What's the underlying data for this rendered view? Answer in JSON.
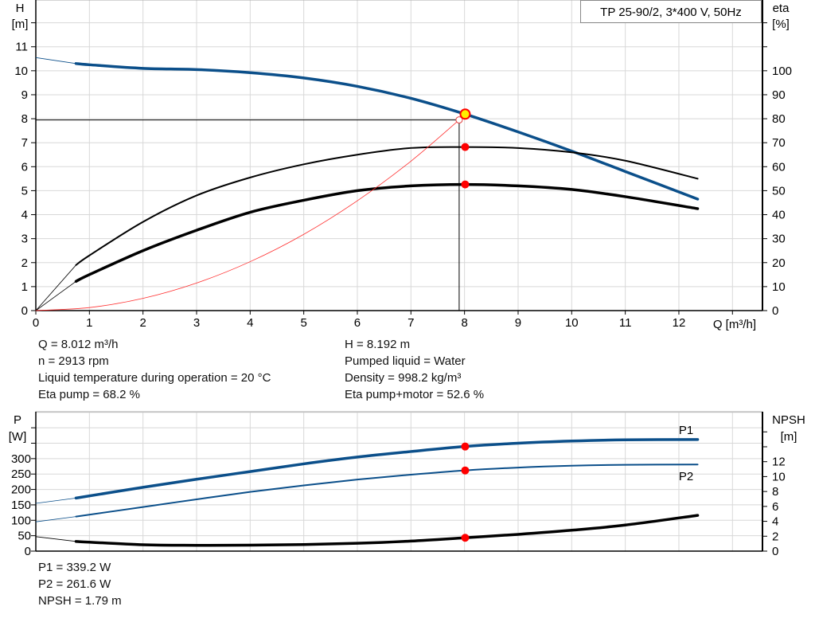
{
  "chart_data": [
    {
      "type": "line",
      "title": "",
      "xlabel": "Q [m³/h]",
      "ylabel": "H\n[m]",
      "y2label": "eta\n[%]",
      "xlim": [
        0,
        13.56
      ],
      "ylim": [
        0,
        12.95
      ],
      "y2lim": [
        0,
        129.5
      ],
      "xticks": [
        0,
        1,
        2,
        3,
        4,
        5,
        6,
        7,
        8,
        9,
        10,
        11,
        12
      ],
      "yticks": [
        0,
        1,
        2,
        3,
        4,
        5,
        6,
        7,
        8,
        9,
        10,
        11
      ],
      "y2ticks": [
        0,
        10,
        20,
        30,
        40,
        50,
        60,
        70,
        80,
        90,
        100
      ],
      "grid": true,
      "series": [
        {
          "key": "H",
          "axis": "left",
          "color": "#0b4f8a",
          "extrapolated": [
            [
              0,
              10.55
            ],
            [
              0.75,
              10.3
            ]
          ],
          "points": [
            [
              0.75,
              10.3
            ],
            [
              1,
              10.25
            ],
            [
              2,
              10.1
            ],
            [
              3,
              10.05
            ],
            [
              4,
              9.92
            ],
            [
              5,
              9.7
            ],
            [
              6,
              9.35
            ],
            [
              7,
              8.85
            ],
            [
              8,
              8.2
            ],
            [
              9,
              7.45
            ],
            [
              10,
              6.65
            ],
            [
              11,
              5.8
            ],
            [
              12.35,
              4.65
            ]
          ]
        },
        {
          "key": "eta_pump",
          "axis": "right",
          "color": "#000000",
          "extrapolated": [
            [
              0,
              0
            ],
            [
              0.75,
              19
            ]
          ],
          "points": [
            [
              0.75,
              19
            ],
            [
              1,
              23
            ],
            [
              2,
              37
            ],
            [
              3,
              48
            ],
            [
              4,
              55.5
            ],
            [
              5,
              61
            ],
            [
              6,
              65
            ],
            [
              7,
              67.8
            ],
            [
              8,
              68.2
            ],
            [
              9,
              67.8
            ],
            [
              10,
              66
            ],
            [
              11,
              62.5
            ],
            [
              12.35,
              55
            ]
          ]
        },
        {
          "key": "eta_pump_motor",
          "axis": "right",
          "color": "#000000",
          "extrapolated": [
            [
              0,
              0
            ],
            [
              0.75,
              12.2
            ]
          ],
          "points": [
            [
              0.75,
              12.2
            ],
            [
              1,
              15
            ],
            [
              2,
              25
            ],
            [
              3,
              33.5
            ],
            [
              4,
              41
            ],
            [
              5,
              46
            ],
            [
              6,
              50
            ],
            [
              7,
              52
            ],
            [
              8,
              52.6
            ],
            [
              9,
              52
            ],
            [
              10,
              50.5
            ],
            [
              11,
              47.5
            ],
            [
              12.35,
              42.5
            ]
          ]
        },
        {
          "key": "system_curve",
          "axis": "left",
          "color": "#ff3030",
          "points": [
            [
              0,
              0
            ],
            [
              1,
              0.127
            ],
            [
              2,
              0.51
            ],
            [
              3,
              1.15
            ],
            [
              4,
              2.04
            ],
            [
              5,
              3.18
            ],
            [
              6,
              4.58
            ],
            [
              7,
              6.23
            ],
            [
              7.9,
              7.95
            ]
          ]
        }
      ],
      "duty_point": {
        "Q": 7.9,
        "H": 7.95
      },
      "operating_point": {
        "Q": 8.012,
        "H": 8.192,
        "eta_pump": 68.2,
        "eta_pump_motor": 52.6
      }
    },
    {
      "type": "line",
      "title": "",
      "ylabel": "P\n[W]",
      "y2label": "NPSH\n[m]",
      "xlim": [
        0,
        13.56
      ],
      "ylim": [
        0,
        452
      ],
      "y2lim": [
        0,
        18.7
      ],
      "yticks": [
        0,
        50,
        100,
        150,
        200,
        250,
        300
      ],
      "y2ticks": [
        0,
        2,
        4,
        6,
        8,
        10,
        12
      ],
      "grid": true,
      "series": [
        {
          "name": "P1",
          "axis": "left",
          "color": "#0b4f8a",
          "extrapolated": [
            [
              0,
              155
            ],
            [
              0.75,
              172
            ]
          ],
          "points": [
            [
              0.75,
              172
            ],
            [
              2,
              207
            ],
            [
              3,
              233
            ],
            [
              4,
              258
            ],
            [
              5,
              283
            ],
            [
              6,
              305
            ],
            [
              7,
              323
            ],
            [
              8,
              339.2
            ],
            [
              9,
              350
            ],
            [
              10,
              357
            ],
            [
              11,
              361
            ],
            [
              12.35,
              362
            ]
          ]
        },
        {
          "name": "P2",
          "axis": "left",
          "color": "#0b4f8a",
          "extrapolated": [
            [
              0,
              95
            ],
            [
              0.75,
              112
            ]
          ],
          "points": [
            [
              0.75,
              112
            ],
            [
              2,
              143
            ],
            [
              3,
              168
            ],
            [
              4,
              192
            ],
            [
              5,
              213
            ],
            [
              6,
              232
            ],
            [
              7,
              248
            ],
            [
              8,
              261.6
            ],
            [
              9,
              271
            ],
            [
              10,
              277
            ],
            [
              11,
              280
            ],
            [
              12.35,
              281
            ]
          ]
        },
        {
          "key": "NPSH",
          "axis": "right",
          "color": "#000000",
          "extrapolated": [
            [
              0,
              1.95
            ],
            [
              0.75,
              1.3
            ]
          ],
          "points": [
            [
              0.75,
              1.3
            ],
            [
              2,
              0.85
            ],
            [
              3,
              0.78
            ],
            [
              4,
              0.8
            ],
            [
              5,
              0.88
            ],
            [
              6,
              1.05
            ],
            [
              7,
              1.35
            ],
            [
              8,
              1.79
            ],
            [
              9,
              2.25
            ],
            [
              10,
              2.8
            ],
            [
              11,
              3.5
            ],
            [
              12.35,
              4.8
            ]
          ]
        }
      ],
      "operating_point": {
        "Q": 8.012,
        "P1": 339.2,
        "P2": 261.6,
        "NPSH": 1.79
      }
    }
  ],
  "labels": {
    "h_axis": "H",
    "h_unit": "[m]",
    "eta_axis": "eta",
    "eta_unit": "[%]",
    "q_axis": "Q [m³/h]",
    "p_axis": "P",
    "p_unit": "[W]",
    "npsh_axis": "NPSH",
    "npsh_unit": "[m]",
    "p1": "P1",
    "p2": "P2"
  },
  "model": "TP 25-90/2, 3*400 V, 50Hz",
  "info": {
    "q": "Q = 8.012 m³/h",
    "n": "n = 2913 rpm",
    "temp": "Liquid temperature during operation = 20 °C",
    "eta_pump": "Eta pump = 68.2 %",
    "h": "H = 8.192 m",
    "liquid": "Pumped liquid = Water",
    "density": "Density = 998.2 kg/m³",
    "eta_pm": "Eta pump+motor = 52.6 %",
    "p1": "P1 = 339.2 W",
    "p2": "P2 = 261.6 W",
    "npsh": "NPSH = 1.79 m"
  },
  "colors": {
    "curve_blue": "#0b4f8a",
    "op_point": "#ffee00",
    "marker_red": "#ff0000",
    "grid": "#d8d8d8"
  }
}
